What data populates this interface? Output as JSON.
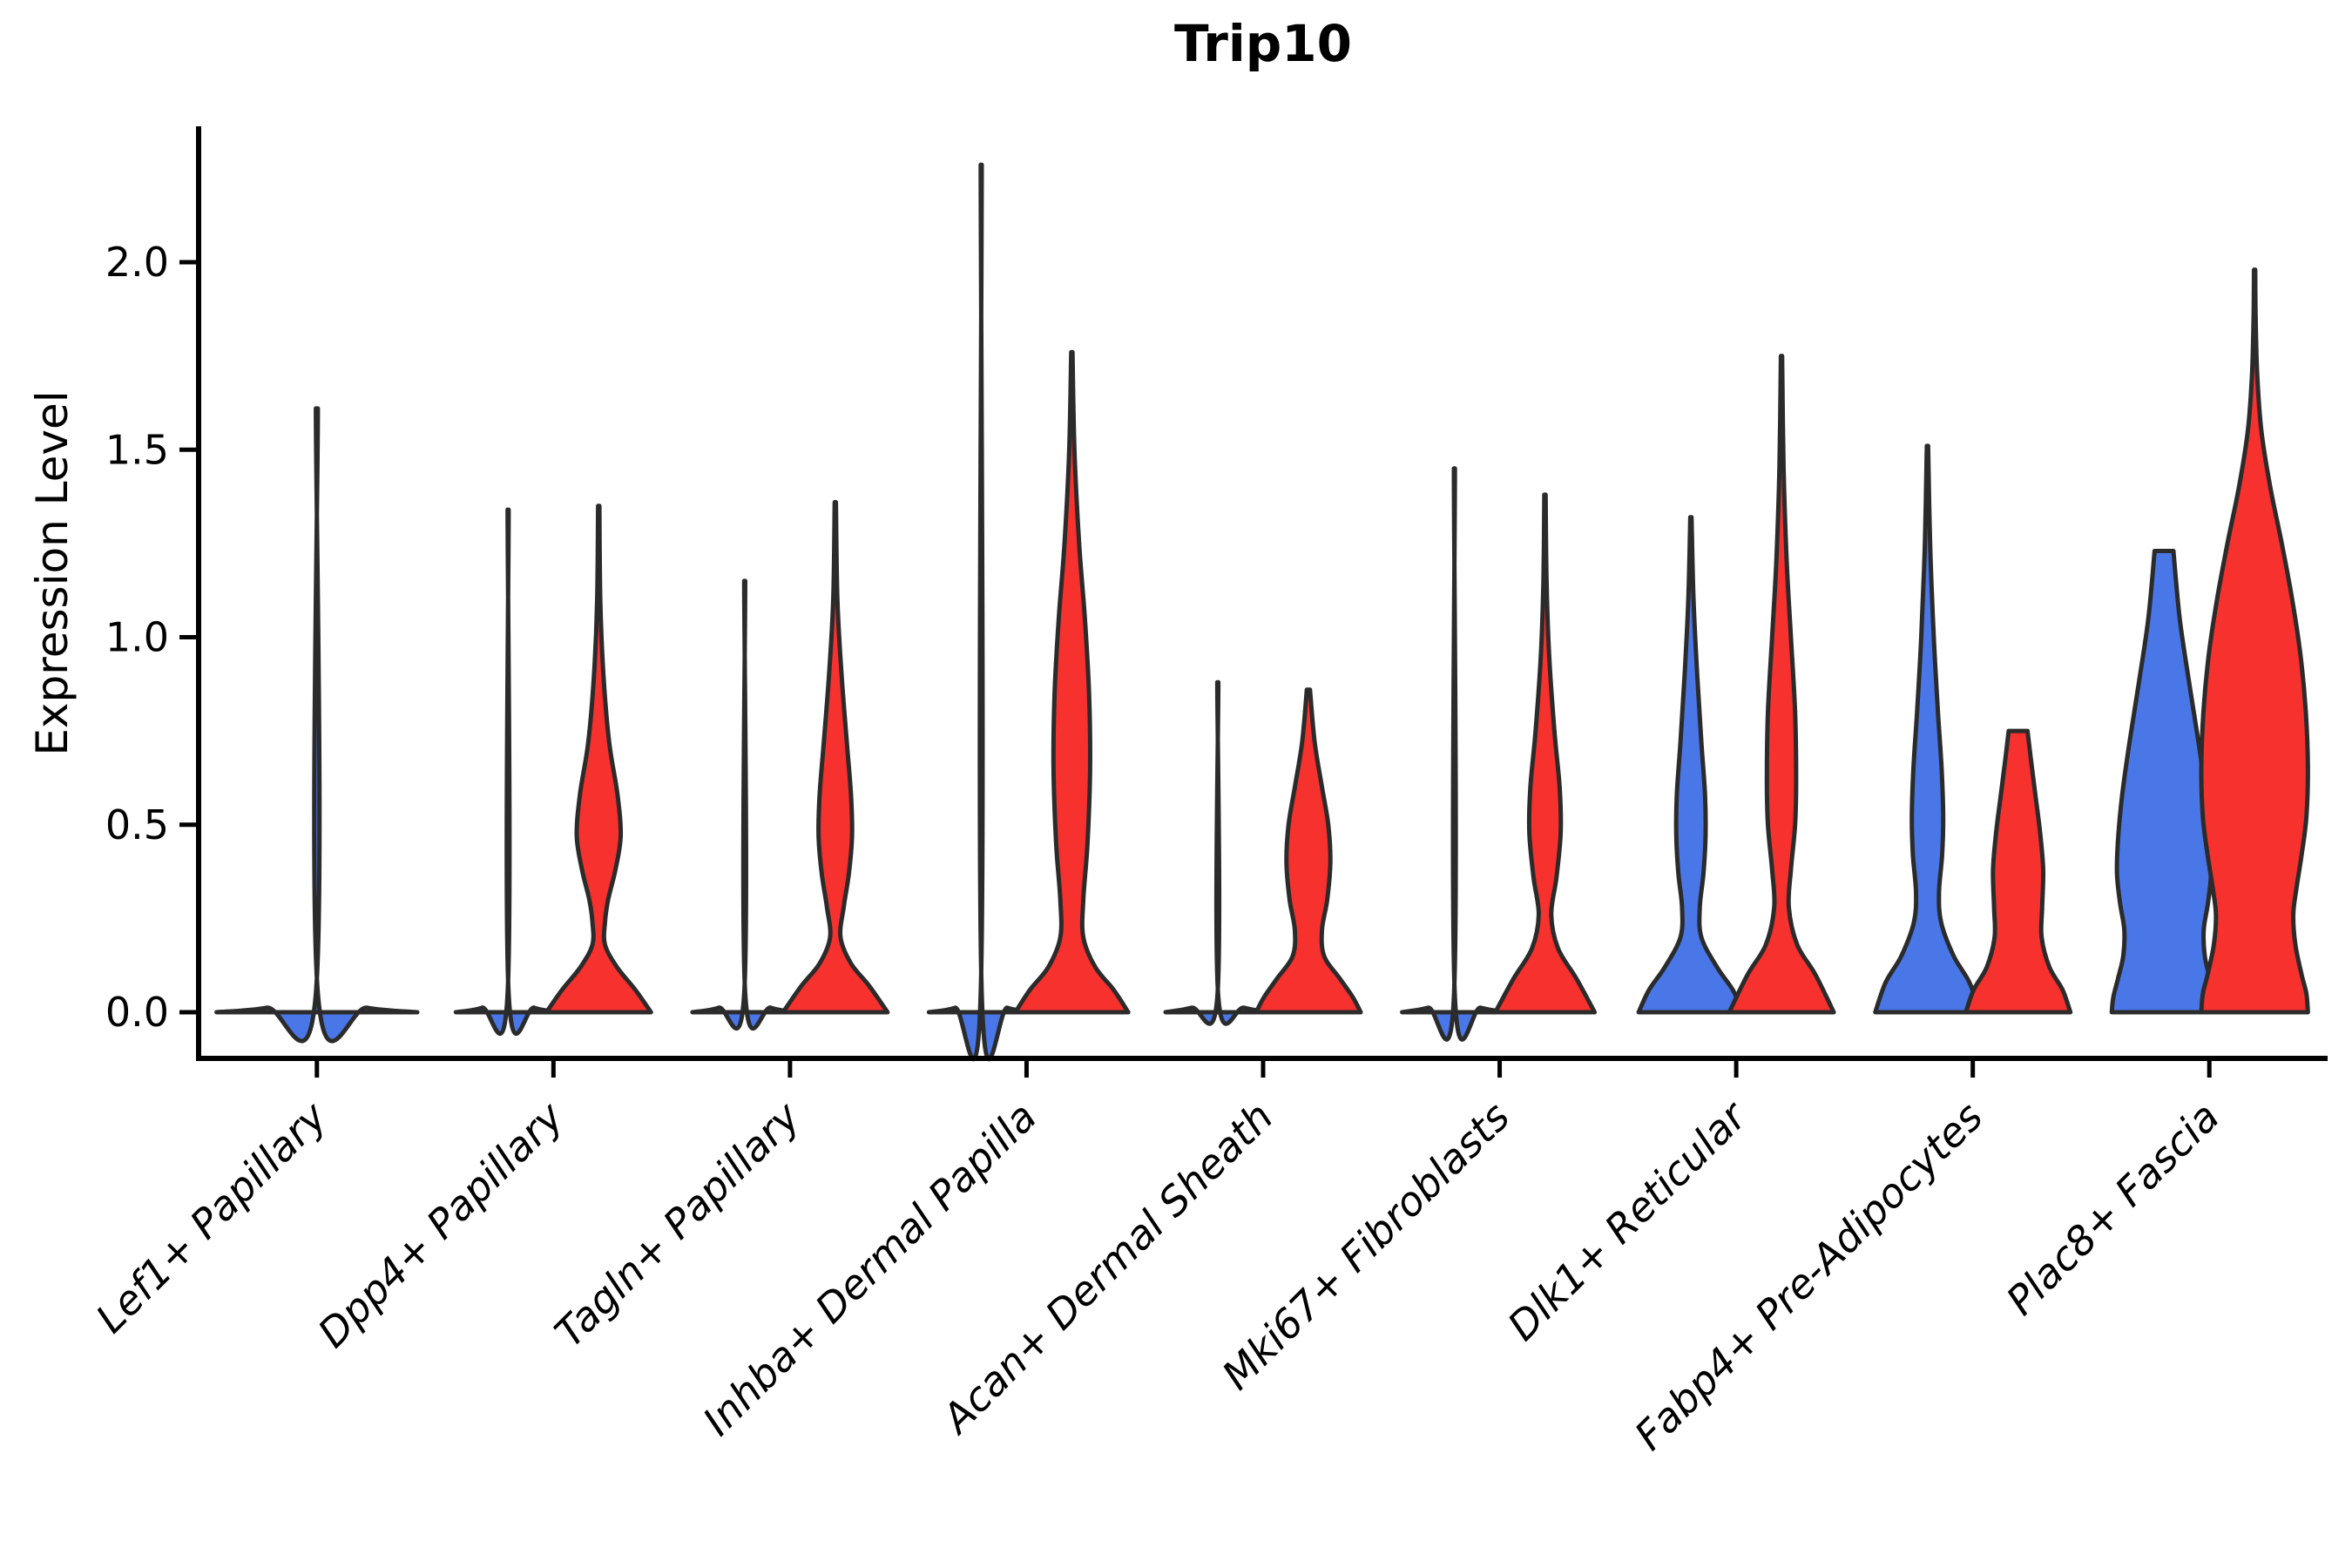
{
  "title": "Trip10",
  "ylabel": "Expression Level",
  "colors": {
    "red": "#F7312E",
    "blue": "#4A77E8",
    "edge": "#2B2B2B",
    "axis": "#000000"
  },
  "chart_data": {
    "type": "violin",
    "title": "Trip10",
    "ylabel": "Expression Level",
    "xlabel": "",
    "grid": false,
    "legend": "none",
    "ylim": [
      0,
      2.36
    ],
    "yticks": [
      2.0,
      1.5,
      1.0,
      0.5,
      0.0
    ],
    "ytick_labels": [
      "2.0",
      "1.5",
      "1.0",
      "0.5",
      "0.0"
    ],
    "categories": [
      "Lef1+ Papillary",
      "Dpp4+ Papillary",
      "Tagln+ Papillary",
      "Inhba+ Dermal Papilla",
      "Acan+ Dermal Sheath",
      "Mki67+ Fibroblasts",
      "Dlk1+ Reticular",
      "Fabp4+ Pre-Adipocytes",
      "Plac8+ Fascia"
    ],
    "max_expression_summary": {
      "Lef1+ Papillary": {
        "single": 1.61
      },
      "Dpp4+ Papillary": {
        "left": 1.34,
        "right": 1.35
      },
      "Tagln+ Papillary": {
        "left": 1.15,
        "right": 1.36
      },
      "Inhba+ Dermal Papilla": {
        "left": 2.26,
        "right": 1.76
      },
      "Acan+ Dermal Sheath": {
        "left": 0.88,
        "right": 0.86
      },
      "Mki67+ Fibroblasts": {
        "left": 1.45,
        "right": 1.38
      },
      "Dlk1+ Reticular": {
        "left": 1.32,
        "right": 1.75
      },
      "Fabp4+ Pre-Adipocytes": {
        "left": 1.51,
        "right": 0.75
      },
      "Plac8+ Fascia": {
        "left": 1.23,
        "right": 1.98
      }
    },
    "violins": [
      {
        "category": "Lef1+ Papillary",
        "side": "center",
        "color_key": "blue",
        "max": 1.61,
        "wscale": 1.92,
        "profile": [
          [
            1.61,
            0.01
          ],
          [
            0.05,
            0.01
          ],
          [
            0.012,
            0.5
          ],
          [
            0,
            1.0
          ]
        ]
      },
      {
        "category": "Dpp4+ Papillary",
        "side": "left",
        "color_key": "blue",
        "max": 1.34,
        "profile": [
          [
            1.34,
            0.01
          ],
          [
            0.05,
            0.01
          ],
          [
            0.012,
            0.5
          ],
          [
            0,
            1.0
          ]
        ]
      },
      {
        "category": "Dpp4+ Papillary",
        "side": "right",
        "color_key": "red",
        "max": 1.35,
        "profile": [
          [
            1.35,
            0.012
          ],
          [
            1.1,
            0.03
          ],
          [
            0.9,
            0.09
          ],
          [
            0.72,
            0.2
          ],
          [
            0.58,
            0.36
          ],
          [
            0.47,
            0.42
          ],
          [
            0.38,
            0.32
          ],
          [
            0.3,
            0.18
          ],
          [
            0.24,
            0.12
          ],
          [
            0.18,
            0.12
          ],
          [
            0.12,
            0.35
          ],
          [
            0.06,
            0.7
          ],
          [
            0,
            1.0
          ]
        ]
      },
      {
        "category": "Tagln+ Papillary",
        "side": "left",
        "color_key": "blue",
        "max": 1.15,
        "profile": [
          [
            1.15,
            0.01
          ],
          [
            0.05,
            0.01
          ],
          [
            0.012,
            0.5
          ],
          [
            0,
            1.0
          ]
        ]
      },
      {
        "category": "Tagln+ Papillary",
        "side": "right",
        "color_key": "red",
        "max": 1.36,
        "profile": [
          [
            1.36,
            0.012
          ],
          [
            1.1,
            0.04
          ],
          [
            0.9,
            0.12
          ],
          [
            0.72,
            0.22
          ],
          [
            0.58,
            0.3
          ],
          [
            0.47,
            0.32
          ],
          [
            0.37,
            0.26
          ],
          [
            0.28,
            0.16
          ],
          [
            0.2,
            0.1
          ],
          [
            0.13,
            0.3
          ],
          [
            0.07,
            0.65
          ],
          [
            0,
            1.0
          ]
        ]
      },
      {
        "category": "Inhba+ Dermal Papilla",
        "side": "left",
        "color_key": "blue",
        "max": 2.26,
        "profile": [
          [
            2.26,
            0.01
          ],
          [
            0.05,
            0.01
          ],
          [
            0.012,
            0.5
          ],
          [
            0,
            1.0
          ]
        ]
      },
      {
        "category": "Inhba+ Dermal Papilla",
        "side": "right",
        "color_key": "red",
        "max": 1.76,
        "profile": [
          [
            1.76,
            0.012
          ],
          [
            1.5,
            0.05
          ],
          [
            1.25,
            0.14
          ],
          [
            1.05,
            0.25
          ],
          [
            0.85,
            0.33
          ],
          [
            0.65,
            0.35
          ],
          [
            0.45,
            0.3
          ],
          [
            0.3,
            0.22
          ],
          [
            0.2,
            0.22
          ],
          [
            0.12,
            0.45
          ],
          [
            0.06,
            0.8
          ],
          [
            0,
            1.08
          ]
        ]
      },
      {
        "category": "Acan+ Dermal Sheath",
        "side": "left",
        "color_key": "blue",
        "max": 0.88,
        "profile": [
          [
            0.88,
            0.01
          ],
          [
            0.04,
            0.01
          ],
          [
            0.012,
            0.5
          ],
          [
            0,
            1.0
          ]
        ]
      },
      {
        "category": "Acan+ Dermal Sheath",
        "side": "right",
        "color_key": "red",
        "max": 0.86,
        "profile": [
          [
            0.86,
            0.03
          ],
          [
            0.72,
            0.12
          ],
          [
            0.6,
            0.26
          ],
          [
            0.5,
            0.38
          ],
          [
            0.4,
            0.42
          ],
          [
            0.3,
            0.36
          ],
          [
            0.22,
            0.26
          ],
          [
            0.15,
            0.3
          ],
          [
            0.09,
            0.6
          ],
          [
            0.04,
            0.85
          ],
          [
            0,
            1.0
          ]
        ]
      },
      {
        "category": "Mki67+ Fibroblasts",
        "side": "left",
        "color_key": "blue",
        "max": 1.45,
        "profile": [
          [
            1.45,
            0.01
          ],
          [
            0.04,
            0.01
          ],
          [
            0.012,
            0.5
          ],
          [
            0,
            1.0
          ]
        ]
      },
      {
        "category": "Mki67+ Fibroblasts",
        "side": "right",
        "color_key": "red",
        "max": 1.38,
        "profile": [
          [
            1.38,
            0.012
          ],
          [
            1.15,
            0.03
          ],
          [
            0.95,
            0.08
          ],
          [
            0.75,
            0.18
          ],
          [
            0.6,
            0.28
          ],
          [
            0.48,
            0.3
          ],
          [
            0.36,
            0.22
          ],
          [
            0.26,
            0.12
          ],
          [
            0.17,
            0.25
          ],
          [
            0.09,
            0.6
          ],
          [
            0,
            0.95
          ]
        ]
      },
      {
        "category": "Dlk1+ Reticular",
        "side": "left",
        "color_key": "blue",
        "max": 1.32,
        "profile": [
          [
            1.32,
            0.012
          ],
          [
            1.1,
            0.05
          ],
          [
            0.9,
            0.12
          ],
          [
            0.72,
            0.2
          ],
          [
            0.58,
            0.27
          ],
          [
            0.47,
            0.28
          ],
          [
            0.37,
            0.24
          ],
          [
            0.28,
            0.17
          ],
          [
            0.2,
            0.2
          ],
          [
            0.12,
            0.5
          ],
          [
            0.06,
            0.8
          ],
          [
            0,
            1.0
          ]
        ]
      },
      {
        "category": "Dlk1+ Reticular",
        "side": "right",
        "color_key": "red",
        "max": 1.75,
        "profile": [
          [
            1.75,
            0.012
          ],
          [
            1.45,
            0.04
          ],
          [
            1.2,
            0.1
          ],
          [
            1.0,
            0.18
          ],
          [
            0.8,
            0.26
          ],
          [
            0.62,
            0.28
          ],
          [
            0.5,
            0.26
          ],
          [
            0.38,
            0.18
          ],
          [
            0.28,
            0.14
          ],
          [
            0.18,
            0.3
          ],
          [
            0.1,
            0.65
          ],
          [
            0,
            1.0
          ]
        ]
      },
      {
        "category": "Fabp4+ Pre-Adipocytes",
        "side": "left",
        "color_key": "blue",
        "max": 1.51,
        "profile": [
          [
            1.51,
            0.012
          ],
          [
            1.25,
            0.05
          ],
          [
            1.0,
            0.12
          ],
          [
            0.8,
            0.2
          ],
          [
            0.65,
            0.27
          ],
          [
            0.52,
            0.3
          ],
          [
            0.42,
            0.28
          ],
          [
            0.32,
            0.22
          ],
          [
            0.24,
            0.26
          ],
          [
            0.15,
            0.5
          ],
          [
            0.08,
            0.8
          ],
          [
            0,
            1.0
          ]
        ]
      },
      {
        "category": "Fabp4+ Pre-Adipocytes",
        "side": "right",
        "color_key": "red",
        "max": 0.75,
        "profile": [
          [
            0.75,
            0.18
          ],
          [
            0.68,
            0.24
          ],
          [
            0.58,
            0.33
          ],
          [
            0.48,
            0.42
          ],
          [
            0.38,
            0.48
          ],
          [
            0.28,
            0.46
          ],
          [
            0.2,
            0.45
          ],
          [
            0.12,
            0.6
          ],
          [
            0.06,
            0.85
          ],
          [
            0,
            1.0
          ]
        ]
      },
      {
        "category": "Plac8+ Fascia",
        "side": "left",
        "color_key": "blue",
        "max": 1.23,
        "profile": [
          [
            1.23,
            0.18
          ],
          [
            1.05,
            0.3
          ],
          [
            0.88,
            0.48
          ],
          [
            0.72,
            0.66
          ],
          [
            0.58,
            0.8
          ],
          [
            0.46,
            0.88
          ],
          [
            0.37,
            0.9
          ],
          [
            0.29,
            0.84
          ],
          [
            0.22,
            0.76
          ],
          [
            0.15,
            0.78
          ],
          [
            0.09,
            0.88
          ],
          [
            0.04,
            0.97
          ],
          [
            0,
            1.0
          ]
        ]
      },
      {
        "category": "Plac8+ Fascia",
        "side": "right",
        "color_key": "red",
        "max": 1.98,
        "profile": [
          [
            1.98,
            0.012
          ],
          [
            1.85,
            0.02
          ],
          [
            1.7,
            0.05
          ],
          [
            1.55,
            0.13
          ],
          [
            1.4,
            0.3
          ],
          [
            1.25,
            0.52
          ],
          [
            1.1,
            0.72
          ],
          [
            0.95,
            0.88
          ],
          [
            0.8,
            0.98
          ],
          [
            0.65,
            1.02
          ],
          [
            0.52,
            0.99
          ],
          [
            0.42,
            0.9
          ],
          [
            0.33,
            0.8
          ],
          [
            0.26,
            0.74
          ],
          [
            0.18,
            0.78
          ],
          [
            0.1,
            0.9
          ],
          [
            0.05,
            0.99
          ],
          [
            0,
            1.02
          ]
        ]
      }
    ]
  }
}
